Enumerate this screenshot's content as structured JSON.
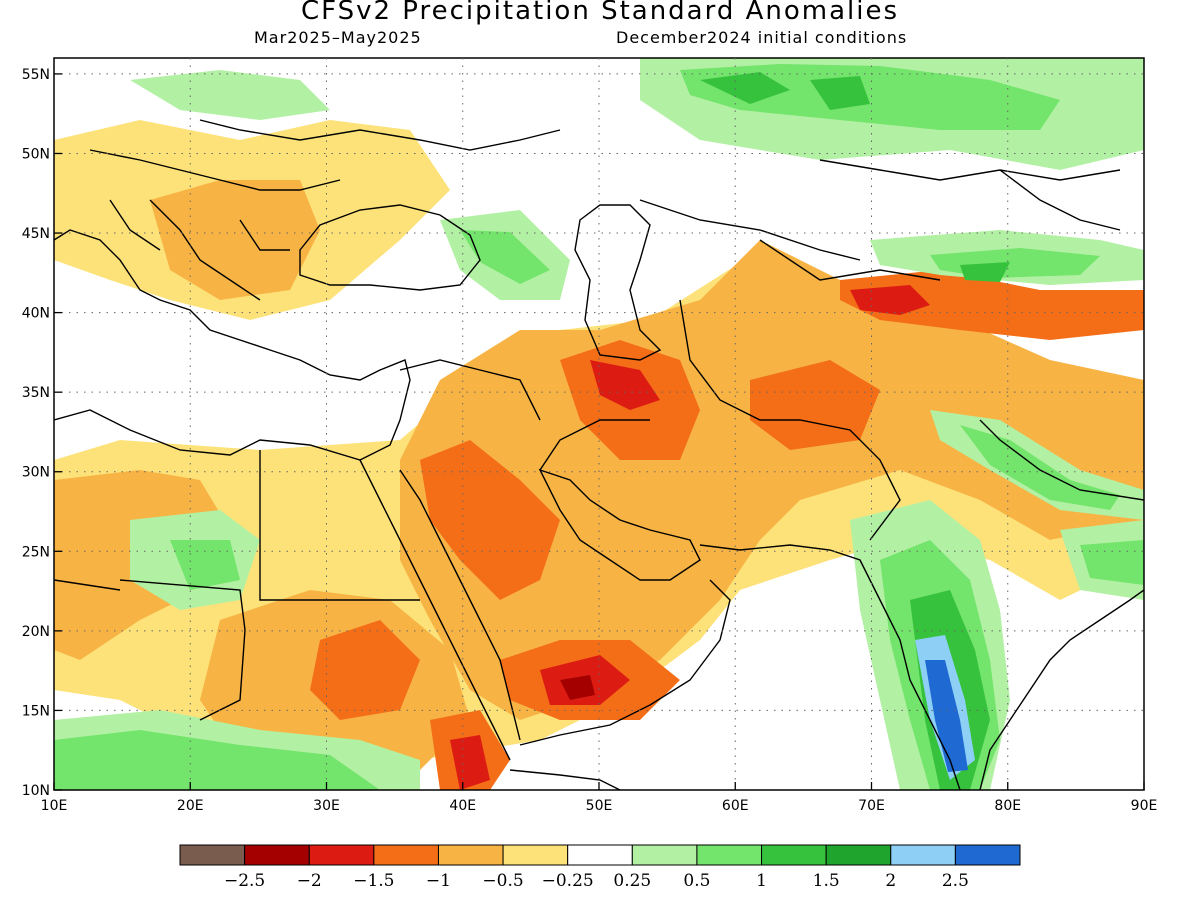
{
  "title": "CFSv2 Precipitation Standard Anomalies",
  "subtitle_left": "Mar2025–May2025",
  "subtitle_right": "December2024 initial conditions",
  "map": {
    "lon_range": [
      10,
      90
    ],
    "lat_range": [
      10,
      56
    ],
    "lon_ticks": [
      "10E",
      "20E",
      "30E",
      "40E",
      "50E",
      "60E",
      "70E",
      "80E",
      "90E"
    ],
    "lat_ticks": [
      "55N",
      "50N",
      "45N",
      "40N",
      "35N",
      "30N",
      "25N",
      "20N",
      "15N",
      "10N"
    ],
    "gridlines": "dotted"
  },
  "colorbar": {
    "colors": [
      "#7a5c4e",
      "#a40000",
      "#dc1c13",
      "#f46d17",
      "#f7b444",
      "#fde27a",
      "#ffffff",
      "#b2f1a3",
      "#73e46c",
      "#37c23d",
      "#1fa52d",
      "#8ecff5",
      "#1e6ad2"
    ],
    "labels": [
      "−2.5",
      "−2",
      "−1.5",
      "−1",
      "−0.5",
      "−0.25",
      "0.25",
      "0.5",
      "1",
      "1.5",
      "2",
      "2.5"
    ]
  },
  "palette": {
    "dry_strong": "#f46d17",
    "dry_mod": "#f7b444",
    "dry_weak": "#fde27a",
    "wet_weak": "#b2f1a3",
    "wet_mod": "#73e46c",
    "wet_strong": "#37c23d"
  }
}
